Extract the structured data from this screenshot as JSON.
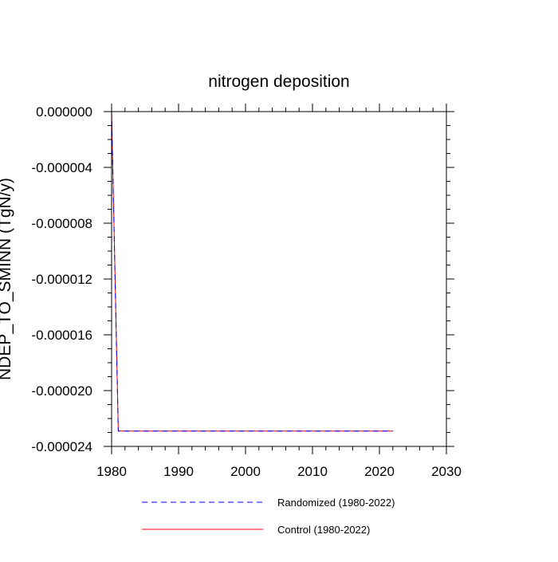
{
  "chart_data": {
    "type": "line",
    "title": "nitrogen deposition",
    "xlabel": "",
    "ylabel": "NDEP_TO_SMINN  (TgN/y)",
    "xlim": [
      1980,
      2030
    ],
    "ylim": [
      -2.4e-05,
      0.0
    ],
    "x_ticks": [
      1980,
      1990,
      2000,
      2010,
      2020,
      2030
    ],
    "x_tick_labels": [
      "1980",
      "1990",
      "2000",
      "2010",
      "2020",
      "2030"
    ],
    "y_ticks": [
      0.0,
      -4e-06,
      -8e-06,
      -1.2e-05,
      -1.6e-05,
      -2e-05,
      -2.4e-05
    ],
    "y_tick_labels": [
      "0.000000",
      "-0.000004",
      "-0.000008",
      "-0.000012",
      "-0.000016",
      "-0.000020",
      "-0.000024"
    ],
    "grid": false,
    "legend_position": "bottom",
    "series": [
      {
        "name": "Randomized (1980-2022)",
        "color": "#0000ff",
        "dash": "dashed",
        "x": [
          1980,
          1981,
          1982,
          1983,
          1984,
          1985,
          1986,
          1987,
          1988,
          1989,
          1990,
          1991,
          1992,
          1993,
          1994,
          1995,
          1996,
          1997,
          1998,
          1999,
          2000,
          2001,
          2002,
          2003,
          2004,
          2005,
          2006,
          2007,
          2008,
          2009,
          2010,
          2011,
          2012,
          2013,
          2014,
          2015,
          2016,
          2017,
          2018,
          2019,
          2020,
          2021,
          2022
        ],
        "values": [
          0.0,
          -2.29e-05,
          -2.29e-05,
          -2.29e-05,
          -2.29e-05,
          -2.29e-05,
          -2.29e-05,
          -2.29e-05,
          -2.29e-05,
          -2.29e-05,
          -2.29e-05,
          -2.29e-05,
          -2.29e-05,
          -2.29e-05,
          -2.29e-05,
          -2.29e-05,
          -2.29e-05,
          -2.29e-05,
          -2.29e-05,
          -2.29e-05,
          -2.29e-05,
          -2.29e-05,
          -2.29e-05,
          -2.29e-05,
          -2.29e-05,
          -2.29e-05,
          -2.29e-05,
          -2.29e-05,
          -2.29e-05,
          -2.29e-05,
          -2.29e-05,
          -2.29e-05,
          -2.29e-05,
          -2.29e-05,
          -2.29e-05,
          -2.29e-05,
          -2.29e-05,
          -2.29e-05,
          -2.29e-05,
          -2.29e-05,
          -2.29e-05,
          -2.29e-05,
          -2.29e-05
        ]
      },
      {
        "name": "Control (1980-2022)",
        "color": "#ff0000",
        "dash": "solid",
        "x": [
          1980,
          1981,
          1982,
          1983,
          1984,
          1985,
          1986,
          1987,
          1988,
          1989,
          1990,
          1991,
          1992,
          1993,
          1994,
          1995,
          1996,
          1997,
          1998,
          1999,
          2000,
          2001,
          2002,
          2003,
          2004,
          2005,
          2006,
          2007,
          2008,
          2009,
          2010,
          2011,
          2012,
          2013,
          2014,
          2015,
          2016,
          2017,
          2018,
          2019,
          2020,
          2021,
          2022
        ],
        "values": [
          0.0,
          -2.29e-05,
          -2.29e-05,
          -2.29e-05,
          -2.29e-05,
          -2.29e-05,
          -2.29e-05,
          -2.29e-05,
          -2.29e-05,
          -2.29e-05,
          -2.29e-05,
          -2.29e-05,
          -2.29e-05,
          -2.29e-05,
          -2.29e-05,
          -2.29e-05,
          -2.29e-05,
          -2.29e-05,
          -2.29e-05,
          -2.29e-05,
          -2.29e-05,
          -2.29e-05,
          -2.29e-05,
          -2.29e-05,
          -2.29e-05,
          -2.29e-05,
          -2.29e-05,
          -2.29e-05,
          -2.29e-05,
          -2.29e-05,
          -2.29e-05,
          -2.29e-05,
          -2.29e-05,
          -2.29e-05,
          -2.29e-05,
          -2.29e-05,
          -2.29e-05,
          -2.29e-05,
          -2.29e-05,
          -2.29e-05,
          -2.29e-05,
          -2.29e-05,
          -2.29e-05
        ]
      }
    ]
  }
}
